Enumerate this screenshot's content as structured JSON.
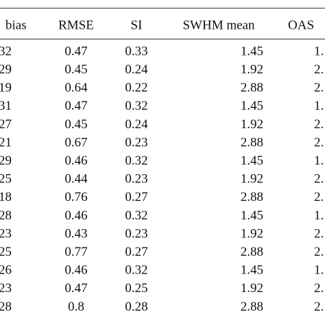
{
  "table": {
    "header": [
      "bias",
      "RMSE",
      "SI",
      "SWHM mean",
      "OAS"
    ],
    "rows": [
      [
        "32",
        "0.47",
        "0.33",
        "1.45",
        "1."
      ],
      [
        "29",
        "0.45",
        "0.24",
        "1.92",
        "2."
      ],
      [
        "19",
        "0.64",
        "0.22",
        "2.88",
        "2."
      ],
      [
        "31",
        "0.47",
        "0.32",
        "1.45",
        "1."
      ],
      [
        "27",
        "0.45",
        "0.24",
        "1.92",
        "2."
      ],
      [
        "21",
        "0.67",
        "0.23",
        "2.88",
        "2."
      ],
      [
        "29",
        "0.46",
        "0.32",
        "1.45",
        "1."
      ],
      [
        "25",
        "0.44",
        "0.23",
        "1.92",
        "2."
      ],
      [
        "18",
        "0.76",
        "0.27",
        "2.88",
        "2."
      ],
      [
        "28",
        "0.46",
        "0.32",
        "1.45",
        "1."
      ],
      [
        "23",
        "0.43",
        "0.23",
        "1.92",
        "2."
      ],
      [
        "25",
        "0.77",
        "0.27",
        "2.88",
        "2."
      ],
      [
        "26",
        "0.46",
        "0.32",
        "1.45",
        "1."
      ],
      [
        "23",
        "0.47",
        "0.25",
        "1.92",
        "2."
      ],
      [
        "28",
        "0.8",
        "0.28",
        "2.88",
        "2."
      ]
    ]
  }
}
